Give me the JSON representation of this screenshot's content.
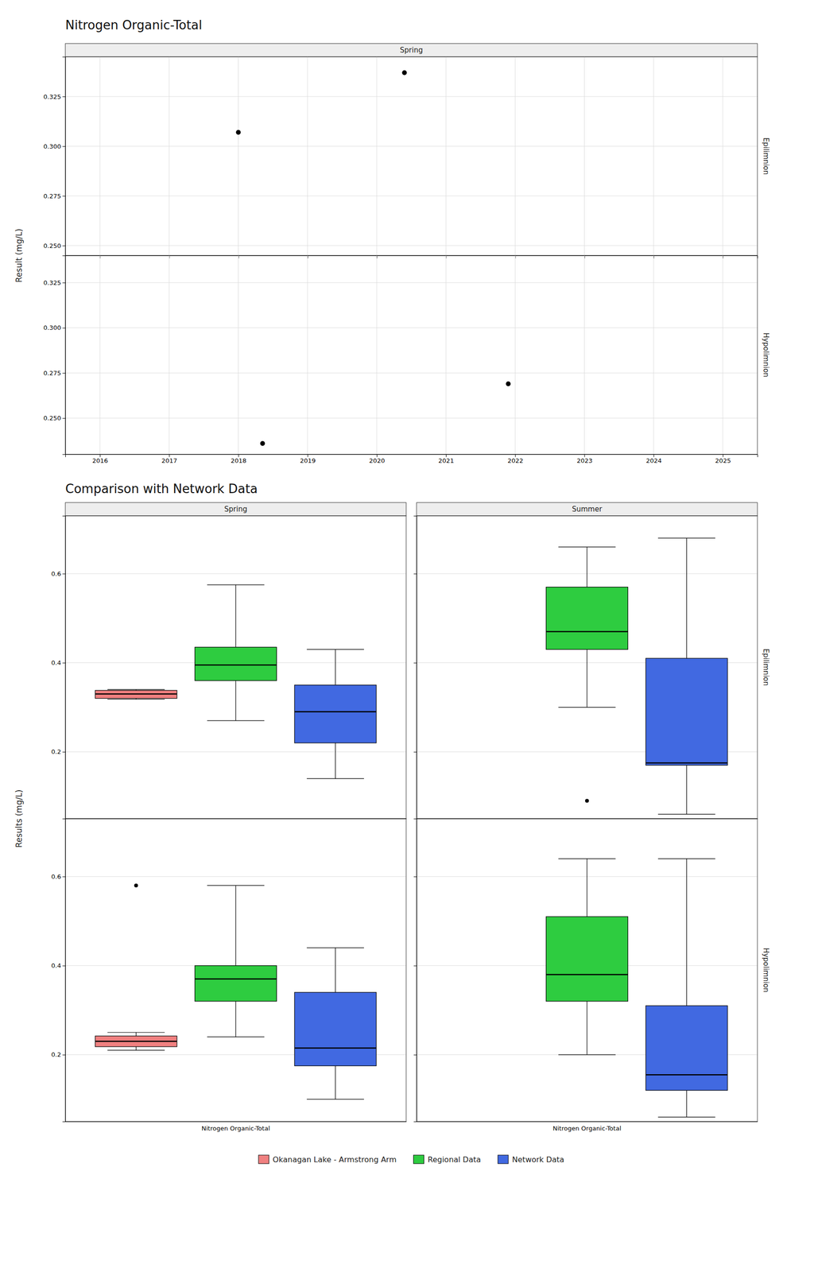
{
  "chart_data": [
    {
      "type": "scatter",
      "title": "Nitrogen Organic-Total",
      "y_label": "Result (mg/L)",
      "column_labels": [
        "Spring"
      ],
      "row_labels": [
        "Epilimnion",
        "Hypolimnion"
      ],
      "xlim": [
        2015.5,
        2025.5
      ],
      "xticks": [
        2016,
        2017,
        2018,
        2019,
        2020,
        2021,
        2022,
        2023,
        2024,
        2025
      ],
      "grid": true,
      "marker": "circle",
      "color": "black",
      "panels": [
        {
          "x": [
            2018.0,
            2020.4
          ],
          "values": [
            0.307,
            0.337
          ],
          "ylim": [
            0.245,
            0.345
          ],
          "yticks": [
            {
              "value": 0.25,
              "label": "0.250"
            },
            0.275,
            {
              "value": 0.3,
              "label": "0.300"
            },
            0.325
          ],
          "tick_labels": "y"
        },
        {
          "x": [
            2018.35,
            2021.9
          ],
          "values": [
            0.236,
            0.269
          ],
          "ylim": [
            0.23,
            0.34
          ],
          "yticks": [
            {
              "value": 0.25,
              "label": "0.250"
            },
            0.275,
            {
              "value": 0.3,
              "label": "0.300"
            },
            0.325
          ]
        }
      ]
    },
    {
      "type": "box",
      "title": "Comparison with Network Data",
      "y_label": "Results (mg/L)",
      "column_labels": [
        "Spring",
        "Summer"
      ],
      "row_labels": [
        "Epilimnion",
        "Hypolimnion"
      ],
      "categories": [
        "Nitrogen Organic-Total"
      ],
      "ylim": [
        0.05,
        0.73
      ],
      "yticks": [
        0.2,
        0.4,
        0.6
      ],
      "grid": true,
      "legend": "bottom",
      "series": [
        {
          "name": "Okanagan Lake - Armstrong Arm",
          "color": "#f08080"
        },
        {
          "name": "Regional Data",
          "color": "#2ecc40"
        },
        {
          "name": "Network Data",
          "color": "#4169e1"
        }
      ],
      "panels": [
        {
          "tick_labels": "y",
          "boxes": [
            {
              "q1": 0.32,
              "median": 0.33,
              "q3": 0.338,
              "whislo": 0.318,
              "whishi": 0.34,
              "fliers": []
            },
            {
              "q1": 0.36,
              "median": 0.395,
              "q3": 0.435,
              "whislo": 0.27,
              "whishi": 0.575,
              "fliers": []
            },
            {
              "q1": 0.22,
              "median": 0.29,
              "q3": 0.35,
              "whislo": 0.14,
              "whishi": 0.43,
              "fliers": []
            }
          ]
        },
        {
          "tick_labels": false,
          "boxes": [
            null,
            {
              "q1": 0.43,
              "median": 0.47,
              "q3": 0.57,
              "whislo": 0.3,
              "whishi": 0.66,
              "fliers": [
                0.09
              ]
            },
            {
              "q1": 0.17,
              "median": 0.175,
              "q3": 0.41,
              "whislo": 0.06,
              "whishi": 0.68,
              "fliers": []
            }
          ]
        },
        {
          "boxes": [
            {
              "q1": 0.218,
              "median": 0.23,
              "q3": 0.242,
              "whislo": 0.21,
              "whishi": 0.25,
              "fliers": [
                0.58
              ]
            },
            {
              "q1": 0.32,
              "median": 0.37,
              "q3": 0.4,
              "whislo": 0.24,
              "whishi": 0.58,
              "fliers": []
            },
            {
              "q1": 0.175,
              "median": 0.215,
              "q3": 0.34,
              "whislo": 0.1,
              "whishi": 0.44,
              "fliers": []
            }
          ]
        },
        {
          "tick_labels": "x",
          "boxes": [
            null,
            {
              "q1": 0.32,
              "median": 0.38,
              "q3": 0.51,
              "whislo": 0.2,
              "whishi": 0.64,
              "fliers": []
            },
            {
              "q1": 0.12,
              "median": 0.155,
              "q3": 0.31,
              "whislo": 0.06,
              "whishi": 0.64,
              "fliers": []
            }
          ]
        }
      ]
    }
  ]
}
